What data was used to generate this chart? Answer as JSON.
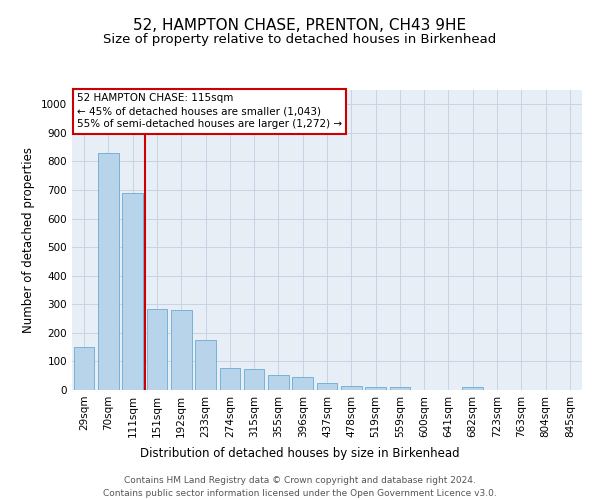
{
  "title": "52, HAMPTON CHASE, PRENTON, CH43 9HE",
  "subtitle": "Size of property relative to detached houses in Birkenhead",
  "xlabel": "Distribution of detached houses by size in Birkenhead",
  "ylabel": "Number of detached properties",
  "categories": [
    "29sqm",
    "70sqm",
    "111sqm",
    "151sqm",
    "192sqm",
    "233sqm",
    "274sqm",
    "315sqm",
    "355sqm",
    "396sqm",
    "437sqm",
    "478sqm",
    "519sqm",
    "559sqm",
    "600sqm",
    "641sqm",
    "682sqm",
    "723sqm",
    "763sqm",
    "804sqm",
    "845sqm"
  ],
  "values": [
    150,
    830,
    690,
    283,
    280,
    175,
    78,
    75,
    52,
    47,
    25,
    13,
    12,
    10,
    0,
    0,
    11,
    0,
    0,
    0,
    0
  ],
  "bar_color": "#b8d4eb",
  "bar_edge_color": "#6aaad4",
  "highlight_bar_index": 2,
  "highlight_color": "#cc0000",
  "annotation_title": "52 HAMPTON CHASE: 115sqm",
  "annotation_line1": "← 45% of detached houses are smaller (1,043)",
  "annotation_line2": "55% of semi-detached houses are larger (1,272) →",
  "annotation_box_color": "#cc0000",
  "ylim": [
    0,
    1050
  ],
  "yticks": [
    0,
    100,
    200,
    300,
    400,
    500,
    600,
    700,
    800,
    900,
    1000
  ],
  "grid_color": "#c8d4e4",
  "plot_bg_color": "#e8eef6",
  "footer_line1": "Contains HM Land Registry data © Crown copyright and database right 2024.",
  "footer_line2": "Contains public sector information licensed under the Open Government Licence v3.0.",
  "title_fontsize": 11,
  "subtitle_fontsize": 9.5,
  "xlabel_fontsize": 8.5,
  "ylabel_fontsize": 8.5,
  "tick_fontsize": 7.5,
  "annotation_fontsize": 7.5,
  "footer_fontsize": 6.5
}
